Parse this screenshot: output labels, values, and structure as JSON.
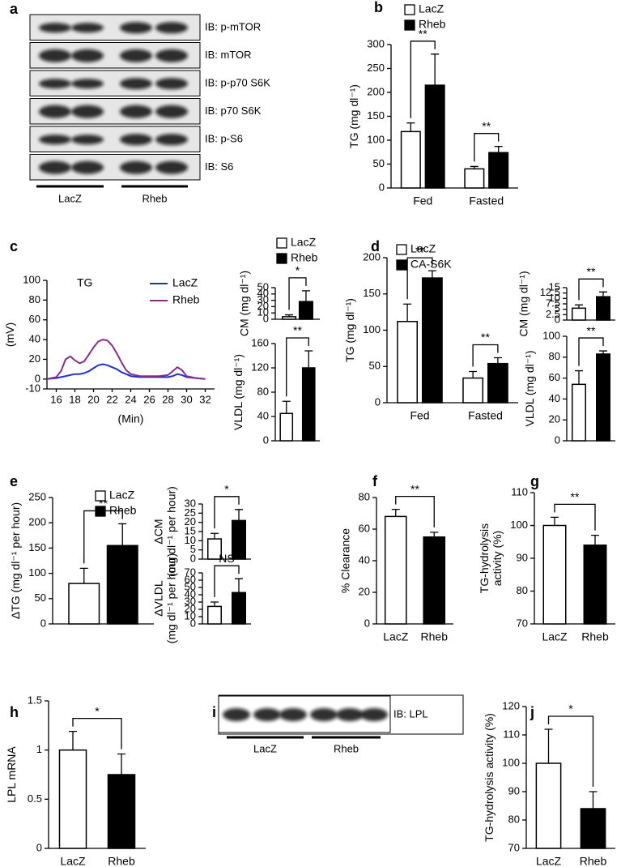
{
  "blots": [
    {
      "panel": "a",
      "labels": [
        "IB: p-mTOR",
        "IB: mTOR",
        "IB: p-p70 S6K",
        "IB: p70 S6K",
        "IB: p-S6",
        "IB: S6"
      ],
      "groups": [
        "LacZ",
        "Rheb"
      ]
    },
    {
      "panel": "i",
      "labels": [
        "IB: LPL"
      ],
      "groups": [
        "LacZ",
        "Rheb"
      ]
    }
  ],
  "chart_data": [
    {
      "panel": "b",
      "type": "bar",
      "ylabel": "TG (mg dl⁻¹)",
      "categories": [
        "Fed",
        "Fasted"
      ],
      "legend": true,
      "series": [
        {
          "name": "LacZ",
          "color": "#ffffff",
          "values": [
            118,
            40
          ],
          "errors": [
            18,
            5
          ]
        },
        {
          "name": "Rheb",
          "color": "#000000",
          "values": [
            215,
            74
          ],
          "errors": [
            65,
            13
          ]
        }
      ],
      "significance": [
        "**",
        "**"
      ],
      "ylim": [
        0,
        300
      ],
      "yticks": [
        0,
        50,
        100,
        150,
        200,
        250,
        300
      ]
    },
    {
      "panel": "c",
      "type": "line",
      "annotation": "TG",
      "ylabel": "(mV)",
      "xlabel": "(Min)",
      "legend": true,
      "x": [
        15,
        16,
        16.5,
        17,
        17.5,
        18,
        18.5,
        19,
        19.5,
        20,
        20.5,
        21,
        21.5,
        22,
        22.5,
        23,
        23.5,
        24,
        25,
        26,
        27,
        28,
        28.5,
        29,
        29.5,
        30,
        31,
        32
      ],
      "series": [
        {
          "name": "LacZ",
          "color": "#2030d0",
          "values": [
            0,
            1,
            2,
            3,
            4,
            5,
            5,
            6,
            8,
            11,
            14,
            15,
            14,
            12,
            10,
            7,
            5,
            3,
            2,
            2,
            2,
            2,
            3,
            5,
            4,
            2,
            1,
            0
          ]
        },
        {
          "name": "Rheb",
          "color": "#8a2a8a",
          "values": [
            0,
            2,
            8,
            20,
            23,
            19,
            16,
            18,
            25,
            32,
            38,
            40,
            39,
            34,
            26,
            17,
            9,
            5,
            3,
            3,
            3,
            4,
            8,
            12,
            9,
            3,
            1,
            0
          ]
        }
      ],
      "xlim": [
        15,
        33
      ],
      "xticks": [
        16,
        18,
        20,
        22,
        24,
        26,
        28,
        30,
        32
      ],
      "ylim": [
        -10,
        100
      ],
      "yticks": [
        -10,
        0,
        20,
        40,
        60,
        80,
        100
      ]
    },
    {
      "type": "bar",
      "ylabel": "CM (mg dl⁻¹)",
      "categories": [
        null
      ],
      "legend": true,
      "series": [
        {
          "name": "LacZ",
          "color": "#ffffff",
          "values": [
            4
          ],
          "errors": [
            3
          ]
        },
        {
          "name": "Rheb",
          "color": "#000000",
          "values": [
            28
          ],
          "errors": [
            17
          ]
        }
      ],
      "significance": [
        "*"
      ],
      "ylim": [
        0,
        50
      ],
      "yticks": [
        0,
        10,
        20,
        30,
        40,
        50
      ]
    },
    {
      "type": "bar",
      "ylabel": "VLDL (mg dl⁻¹)",
      "categories": [
        null,
        null
      ],
      "values": [
        45,
        120
      ],
      "errors": [
        20,
        28
      ],
      "colors": [
        "#ffffff",
        "#000000"
      ],
      "significance": [
        "**"
      ],
      "ylim": [
        0,
        160
      ],
      "yticks": [
        0,
        40,
        80,
        120,
        160
      ]
    },
    {
      "panel": "d",
      "type": "bar",
      "ylabel": "TG (mg dl⁻¹)",
      "categories": [
        "Fed",
        "Fasted"
      ],
      "legend": true,
      "series": [
        {
          "name": "LacZ",
          "color": "#ffffff",
          "values": [
            112,
            34
          ],
          "errors": [
            24,
            9
          ]
        },
        {
          "name": "CA-S6K",
          "color": "#000000",
          "values": [
            172,
            54
          ],
          "errors": [
            10,
            8
          ]
        }
      ],
      "significance": [
        "**",
        "**"
      ],
      "ylim": [
        0,
        200
      ],
      "yticks": [
        0,
        50,
        100,
        150,
        200
      ]
    },
    {
      "type": "bar",
      "ylabel": "CM (mg dl⁻¹)",
      "categories": [
        null,
        null
      ],
      "values": [
        5.5,
        10.8
      ],
      "errors": [
        1.5,
        2.2
      ],
      "colors": [
        "#ffffff",
        "#000000"
      ],
      "significance": [
        "**"
      ],
      "ylim": [
        0,
        15
      ],
      "yticks": [
        0,
        2.5,
        5,
        7.5,
        10,
        12.5,
        15
      ]
    },
    {
      "type": "bar",
      "ylabel": "VLDL (mg dl⁻¹)",
      "categories": [
        null,
        null
      ],
      "values": [
        54,
        83
      ],
      "errors": [
        13,
        3
      ],
      "colors": [
        "#ffffff",
        "#000000"
      ],
      "significance": [
        "**"
      ],
      "ylim": [
        0,
        100
      ],
      "yticks": [
        0,
        20,
        40,
        60,
        80,
        100
      ]
    },
    {
      "panel": "e",
      "type": "bar",
      "ylabel": "ΔTG (mg dl⁻¹ per hour)",
      "categories": [
        null
      ],
      "legend": true,
      "series": [
        {
          "name": "LacZ",
          "color": "#ffffff",
          "values": [
            80
          ],
          "errors": [
            30
          ]
        },
        {
          "name": "Rheb",
          "color": "#000000",
          "values": [
            155
          ],
          "errors": [
            43
          ]
        }
      ],
      "significance": [
        "**"
      ],
      "ylim": [
        0,
        250
      ],
      "yticks": [
        0,
        50,
        100,
        150,
        200,
        250
      ]
    },
    {
      "type": "bar",
      "ylabel": [
        "ΔCM",
        "(mg dl⁻¹ per hour)"
      ],
      "categories": [
        null,
        null
      ],
      "values": [
        11,
        21
      ],
      "errors": [
        3,
        6
      ],
      "colors": [
        "#ffffff",
        "#000000"
      ],
      "significance": [
        "*"
      ],
      "ylim": [
        0,
        30
      ],
      "yticks": [
        0,
        5,
        10,
        15,
        20,
        25,
        30
      ]
    },
    {
      "type": "bar",
      "ylabel": [
        "ΔVLDL",
        "(mg dl⁻¹ per hour)"
      ],
      "categories": [
        null,
        null
      ],
      "values": [
        24,
        43
      ],
      "errors": [
        6,
        19
      ],
      "colors": [
        "#ffffff",
        "#000000"
      ],
      "significance": [
        "NS"
      ],
      "ylim": [
        0,
        70
      ],
      "yticks": [
        0,
        10,
        20,
        30,
        40,
        50,
        60,
        70
      ]
    },
    {
      "panel": "f",
      "type": "bar",
      "ylabel": "% Clearance",
      "categories": [
        "LacZ",
        "Rheb"
      ],
      "values": [
        68,
        55
      ],
      "errors": [
        4.5,
        3
      ],
      "colors": [
        "#ffffff",
        "#000000"
      ],
      "significance": [
        "**"
      ],
      "ylim": [
        0,
        80
      ],
      "yticks": [
        0,
        20,
        40,
        60,
        80
      ]
    },
    {
      "panel": "g",
      "type": "bar",
      "ylabel": [
        "TG-hydrolysis",
        "activity (%)"
      ],
      "categories": [
        "LacZ",
        "Rheb"
      ],
      "values": [
        100,
        94
      ],
      "errors": [
        2.5,
        3
      ],
      "colors": [
        "#ffffff",
        "#000000"
      ],
      "significance": [
        "**"
      ],
      "ylim": [
        70,
        110
      ],
      "yticks": [
        70,
        80,
        90,
        100,
        110
      ]
    },
    {
      "panel": "h",
      "type": "bar",
      "ylabel": "LPL mRNA",
      "categories": [
        "LacZ",
        "Rheb"
      ],
      "values": [
        1.0,
        0.75
      ],
      "errors": [
        0.19,
        0.21
      ],
      "colors": [
        "#ffffff",
        "#000000"
      ],
      "significance": [
        "*"
      ],
      "ylim": [
        0,
        1.5
      ],
      "yticks": [
        0,
        0.5,
        1,
        1.5
      ]
    },
    {
      "panel": "j",
      "type": "bar",
      "ylabel": "TG-hydrolysis activity (%)",
      "categories": [
        "LacZ",
        "Rheb"
      ],
      "values": [
        100,
        84
      ],
      "errors": [
        12,
        6
      ],
      "colors": [
        "#ffffff",
        "#000000"
      ],
      "significance": [
        "*"
      ],
      "ylim": [
        70,
        120
      ],
      "yticks": [
        70,
        80,
        90,
        100,
        110,
        120
      ]
    }
  ]
}
